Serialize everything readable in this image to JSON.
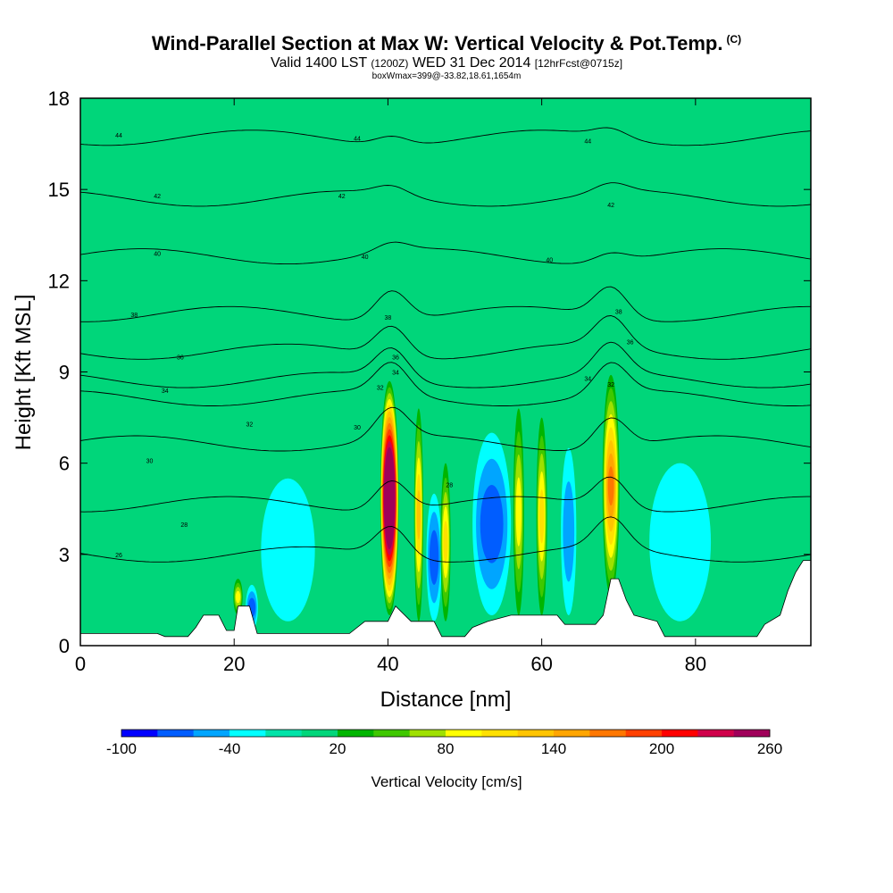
{
  "header": {
    "title": "Wind-Parallel Section at Max W: Vertical Velocity & Pot.Temp.",
    "copyright": "(C)",
    "subtitle_a": "Valid 1400 LST",
    "subtitle_b": "(1200Z)",
    "subtitle_c": "WED 31 Dec 2014",
    "subtitle_d": "[12hrFcst@0715z]",
    "subtitle2": "boxWmax=399@-33.82,18.61,1654m"
  },
  "chart_data": {
    "type": "heatmap",
    "xlabel": "Distance [nm]",
    "ylabel": "Height [Kft MSL]",
    "xlim": [
      0,
      95
    ],
    "ylim": [
      0,
      18
    ],
    "xticks": [
      0,
      20,
      40,
      60,
      80
    ],
    "yticks": [
      0,
      3,
      6,
      9,
      12,
      15,
      18
    ],
    "background_value": 10,
    "updrafts": [
      {
        "x": 20.5,
        "width": 1.2,
        "bottom": 1.0,
        "top": 2.2,
        "w": 90
      },
      {
        "x": 40.2,
        "width": 2.4,
        "bottom": 1.0,
        "top": 8.7,
        "w": 399
      },
      {
        "x": 44.0,
        "width": 1.2,
        "bottom": 0.8,
        "top": 7.8,
        "w": 140
      },
      {
        "x": 47.5,
        "width": 1.3,
        "bottom": 0.8,
        "top": 6.0,
        "w": 110
      },
      {
        "x": 57.0,
        "width": 1.4,
        "bottom": 1.0,
        "top": 7.8,
        "w": 90
      },
      {
        "x": 60.0,
        "width": 1.4,
        "bottom": 1.0,
        "top": 7.5,
        "w": 110
      },
      {
        "x": 69.0,
        "width": 2.2,
        "bottom": 1.6,
        "top": 8.9,
        "w": 170
      }
    ],
    "downdrafts": [
      {
        "x": 22.3,
        "width": 1.6,
        "bottom": 0.5,
        "top": 2.0,
        "w": -70
      },
      {
        "x": 27.0,
        "width": 7.0,
        "bottom": 0.8,
        "top": 5.5,
        "w": -40
      },
      {
        "x": 46.0,
        "width": 2.0,
        "bottom": 0.8,
        "top": 5.0,
        "w": -80
      },
      {
        "x": 53.5,
        "width": 5.0,
        "bottom": 1.0,
        "top": 7.0,
        "w": -70
      },
      {
        "x": 63.5,
        "width": 2.0,
        "bottom": 1.0,
        "top": 6.5,
        "w": -50
      },
      {
        "x": 78.0,
        "width": 8.0,
        "bottom": 0.8,
        "top": 6.0,
        "w": -40
      }
    ],
    "terrain": [
      [
        0,
        0.4
      ],
      [
        10,
        0.4
      ],
      [
        11,
        0.3
      ],
      [
        14,
        0.3
      ],
      [
        15,
        0.6
      ],
      [
        16,
        1.0
      ],
      [
        18,
        1.0
      ],
      [
        19,
        0.5
      ],
      [
        20,
        0.5
      ],
      [
        20.5,
        1.3
      ],
      [
        22,
        1.3
      ],
      [
        23,
        0.4
      ],
      [
        35,
        0.4
      ],
      [
        37,
        0.8
      ],
      [
        40,
        0.8
      ],
      [
        41,
        1.3
      ],
      [
        43,
        0.8
      ],
      [
        46,
        0.8
      ],
      [
        47,
        0.3
      ],
      [
        50,
        0.3
      ],
      [
        51,
        0.6
      ],
      [
        53,
        0.8
      ],
      [
        56,
        1.0
      ],
      [
        62,
        1.0
      ],
      [
        63,
        0.7
      ],
      [
        67,
        0.7
      ],
      [
        68,
        1.0
      ],
      [
        69,
        2.2
      ],
      [
        70,
        2.2
      ],
      [
        71,
        1.5
      ],
      [
        72,
        1.0
      ],
      [
        75,
        0.8
      ],
      [
        76,
        0.3
      ],
      [
        88,
        0.3
      ],
      [
        89,
        0.7
      ],
      [
        91,
        1.0
      ],
      [
        92,
        1.8
      ],
      [
        93,
        2.4
      ],
      [
        94,
        2.8
      ],
      [
        95,
        2.8
      ]
    ],
    "colorbar": {
      "label": "Vertical Velocity [cm/s]",
      "tick_labels": [
        "-100",
        "-40",
        "20",
        "80",
        "140",
        "200",
        "260"
      ],
      "tick_values": [
        -100,
        -40,
        20,
        80,
        140,
        200,
        260
      ],
      "bins": [
        -100,
        -80,
        -60,
        -40,
        -20,
        0,
        20,
        40,
        60,
        80,
        100,
        120,
        140,
        160,
        180,
        200,
        220,
        240,
        260
      ],
      "colors": [
        "#0000ff",
        "#005dff",
        "#00a5ff",
        "#00ffff",
        "#00e3a8",
        "#00d67a",
        "#00b500",
        "#3fc800",
        "#9fe000",
        "#ffff00",
        "#ffe000",
        "#ffc400",
        "#ffa500",
        "#ff7700",
        "#ff4000",
        "#ff0000",
        "#d0004a",
        "#a0005a"
      ]
    },
    "isentrope_labels": [
      {
        "x": 5,
        "y": 16.8,
        "text": "44"
      },
      {
        "x": 36,
        "y": 16.7,
        "text": "44"
      },
      {
        "x": 66,
        "y": 16.6,
        "text": "44"
      },
      {
        "x": 10,
        "y": 14.8,
        "text": "42"
      },
      {
        "x": 34,
        "y": 14.8,
        "text": "42"
      },
      {
        "x": 69,
        "y": 14.5,
        "text": "42"
      },
      {
        "x": 10,
        "y": 12.9,
        "text": "40"
      },
      {
        "x": 37,
        "y": 12.8,
        "text": "40"
      },
      {
        "x": 61,
        "y": 12.7,
        "text": "40"
      },
      {
        "x": 7,
        "y": 10.9,
        "text": "38"
      },
      {
        "x": 40,
        "y": 10.8,
        "text": "38"
      },
      {
        "x": 70,
        "y": 11.0,
        "text": "38"
      },
      {
        "x": 13,
        "y": 9.5,
        "text": "36"
      },
      {
        "x": 41,
        "y": 9.5,
        "text": "36"
      },
      {
        "x": 71.5,
        "y": 10.0,
        "text": "36"
      },
      {
        "x": 11,
        "y": 8.4,
        "text": "34"
      },
      {
        "x": 41,
        "y": 9.0,
        "text": "34"
      },
      {
        "x": 66,
        "y": 8.8,
        "text": "34"
      },
      {
        "x": 22,
        "y": 7.3,
        "text": "32"
      },
      {
        "x": 39,
        "y": 8.5,
        "text": "32"
      },
      {
        "x": 69,
        "y": 8.6,
        "text": "32"
      },
      {
        "x": 9,
        "y": 6.1,
        "text": "30"
      },
      {
        "x": 36,
        "y": 7.2,
        "text": "30"
      },
      {
        "x": 13.5,
        "y": 4.0,
        "text": "28"
      },
      {
        "x": 48,
        "y": 5.3,
        "text": "28"
      },
      {
        "x": 5,
        "y": 3.0,
        "text": "26"
      }
    ]
  }
}
